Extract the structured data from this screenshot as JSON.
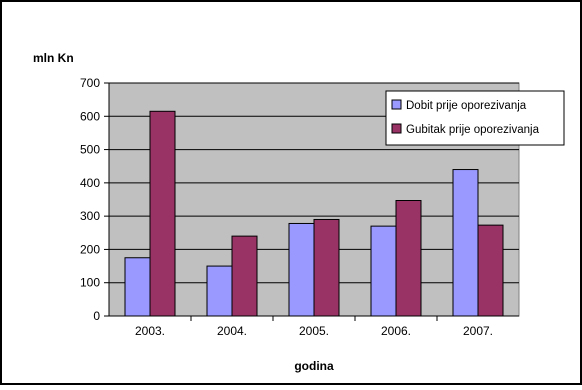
{
  "chart_data": {
    "type": "bar",
    "ylabel": "mln Kn",
    "xlabel": "godina",
    "categories": [
      "2003.",
      "2004.",
      "2005.",
      "2006.",
      "2007."
    ],
    "ylim": [
      0,
      700
    ],
    "yticks": [
      0,
      100,
      200,
      300,
      400,
      500,
      600,
      700
    ],
    "grid": true,
    "legend_position": "top-right",
    "plot_background": "#c0c0c0",
    "series": [
      {
        "name": "Dobit prije oporezivanja",
        "color": "#9999ff",
        "values": [
          175,
          150,
          278,
          270,
          440
        ]
      },
      {
        "name": "Gubitak prije oporezivanja",
        "color": "#993366",
        "values": [
          615,
          240,
          290,
          347,
          273
        ]
      }
    ]
  }
}
